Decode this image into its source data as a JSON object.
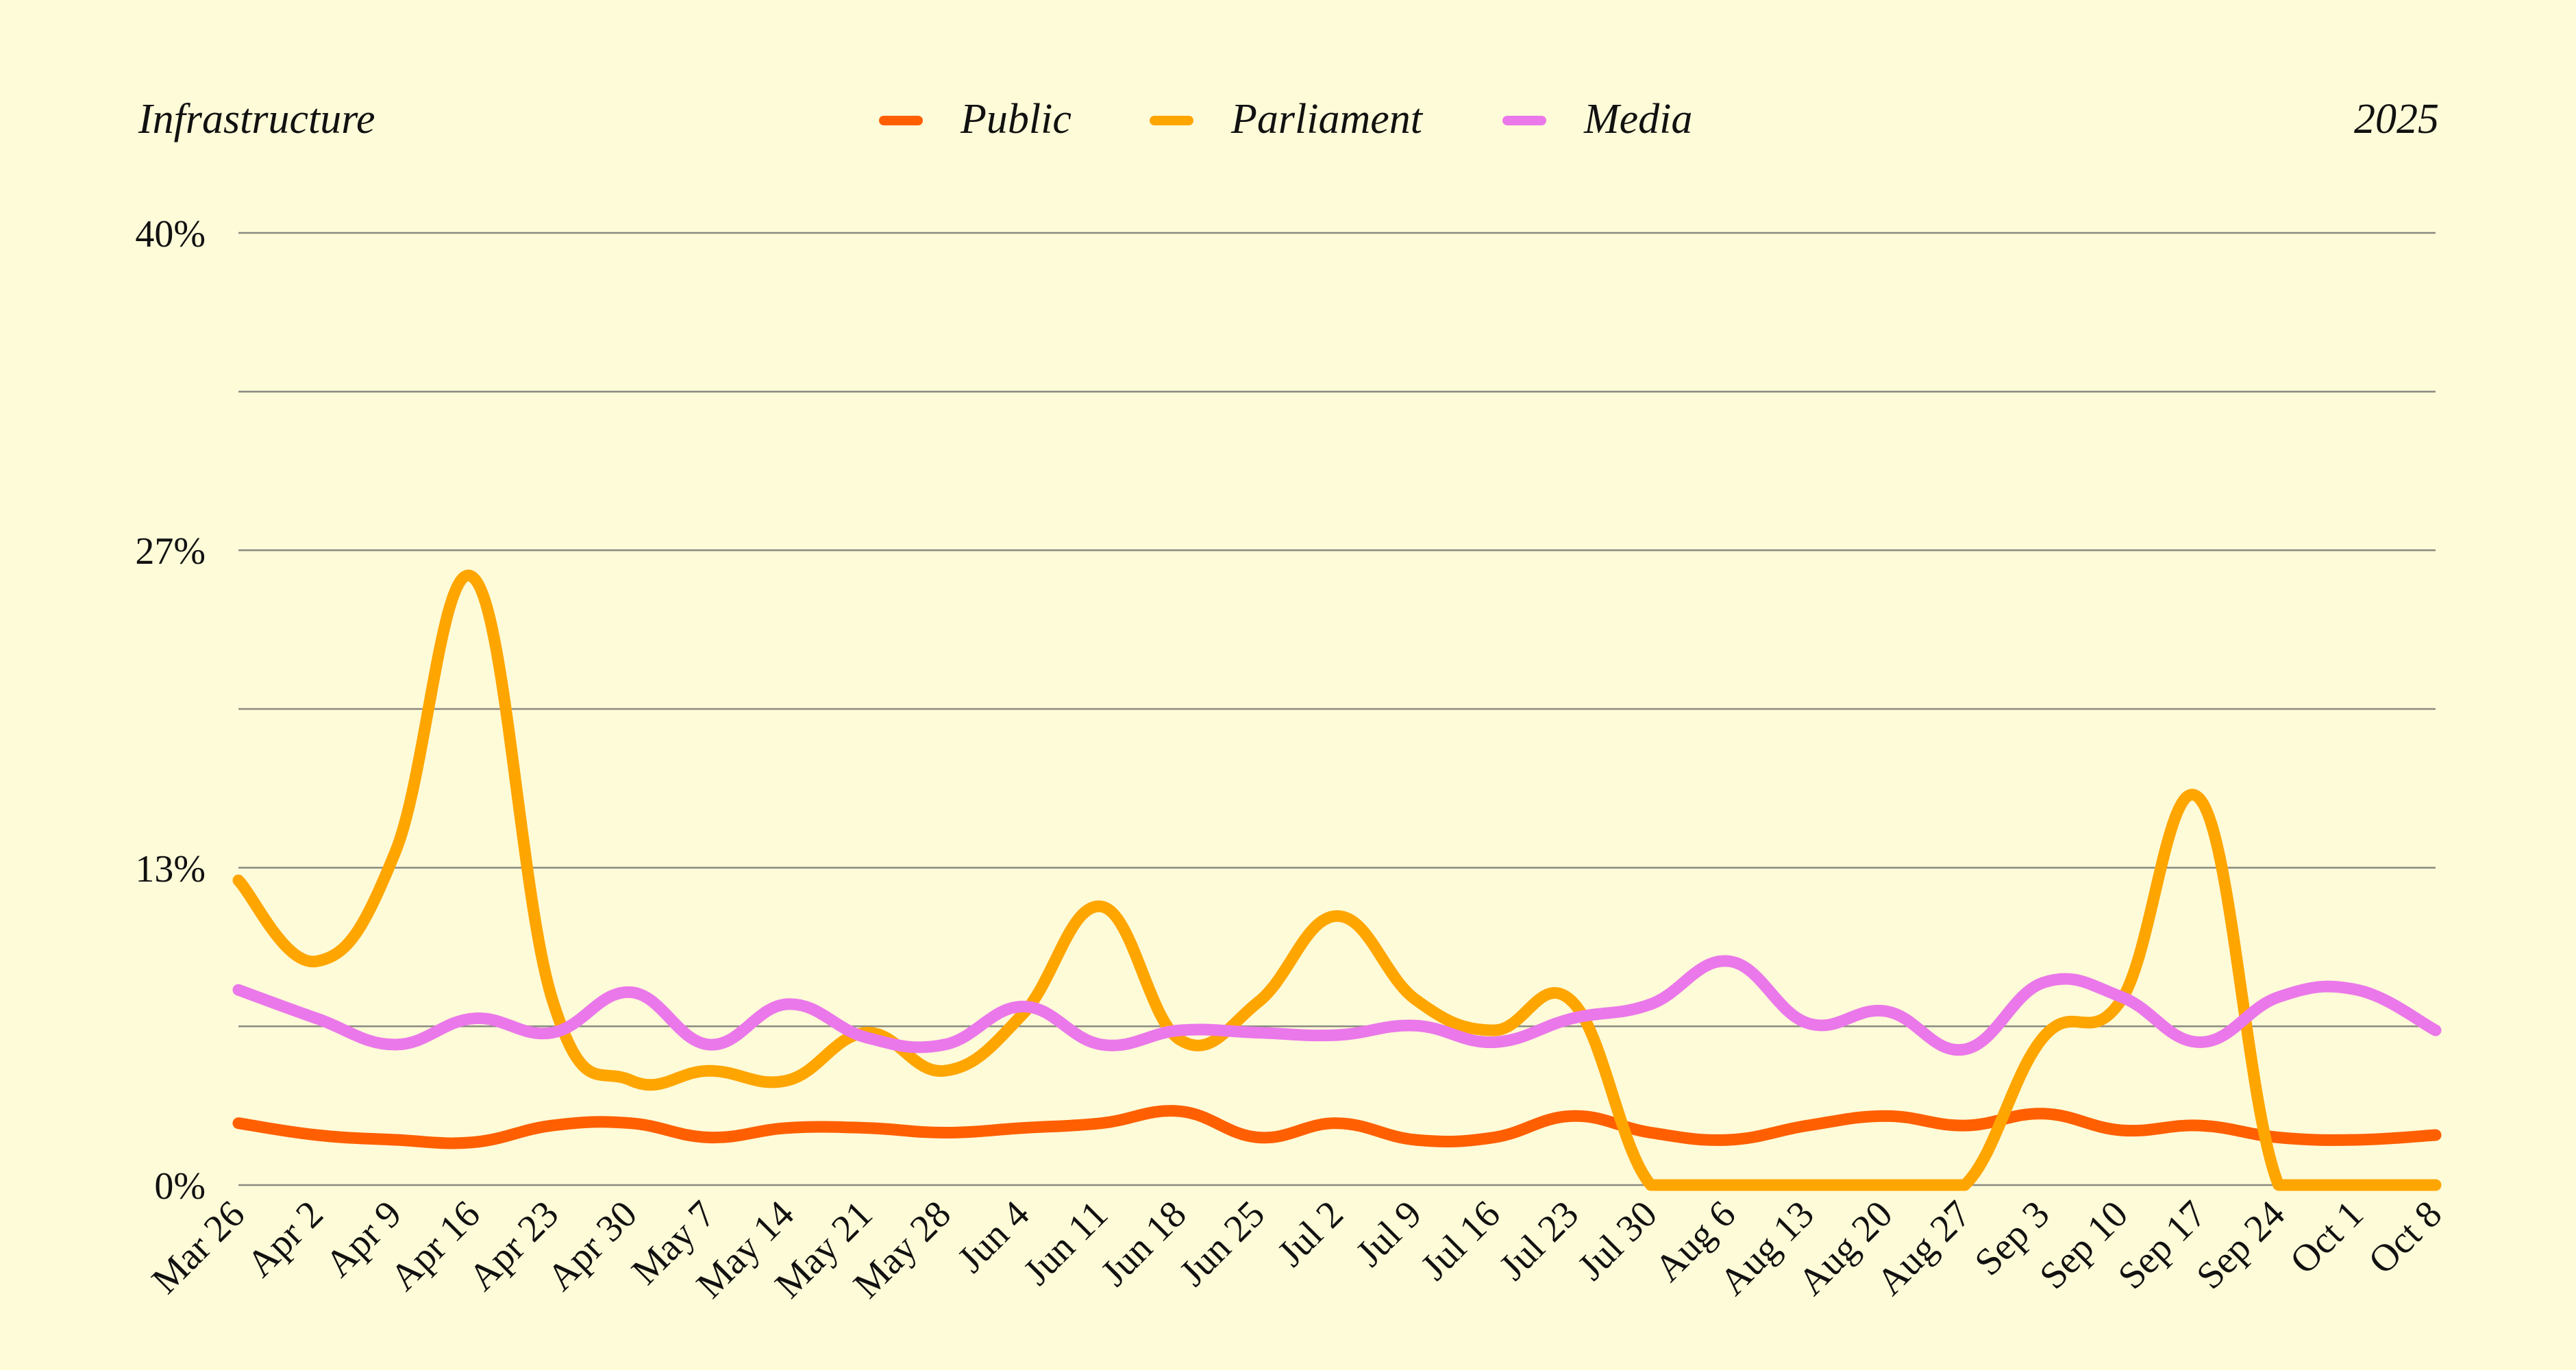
{
  "chart_data": {
    "type": "line",
    "title": "Infrastructure",
    "year_label": "2025",
    "ylim": [
      0,
      40
    ],
    "y_ticks": [
      {
        "value": 0,
        "label": "0%"
      },
      {
        "value": 13.33,
        "label": "13%"
      },
      {
        "value": 26.67,
        "label": "27%"
      },
      {
        "value": 40,
        "label": "40%"
      }
    ],
    "y_gridlines": [
      0,
      6.67,
      13.33,
      20,
      26.67,
      33.33,
      40
    ],
    "grid": true,
    "legend_position": "top-center",
    "categories": [
      "Mar 26",
      "Apr 2",
      "Apr 9",
      "Apr 16",
      "Apr 23",
      "Apr 30",
      "May 7",
      "May 14",
      "May 21",
      "May 28",
      "Jun 4",
      "Jun 11",
      "Jun 18",
      "Jun 25",
      "Jul 2",
      "Jul 9",
      "Jul 16",
      "Jul 23",
      "Jul 30",
      "Aug 6",
      "Aug 13",
      "Aug 20",
      "Aug 27",
      "Sep 3",
      "Sep 10",
      "Sep 17",
      "Sep 24",
      "Oct 1",
      "Oct 8"
    ],
    "series": [
      {
        "name": "Public",
        "color": "#ff5f00",
        "values": [
          2.6,
          2.1,
          1.9,
          1.8,
          2.5,
          2.6,
          2.0,
          2.4,
          2.4,
          2.2,
          2.4,
          2.6,
          3.1,
          2.0,
          2.6,
          1.9,
          2.0,
          2.9,
          2.2,
          1.9,
          2.5,
          2.9,
          2.5,
          3.0,
          2.3,
          2.5,
          2.0,
          1.9,
          2.1
        ]
      },
      {
        "name": "Parliament",
        "color": "#ffa500",
        "values": [
          12.8,
          9.4,
          14.0,
          25.5,
          7.8,
          4.4,
          4.8,
          4.4,
          6.4,
          4.8,
          7.2,
          11.7,
          6.1,
          7.7,
          11.3,
          7.8,
          6.5,
          7.7,
          0.0,
          0.0,
          0.0,
          0.0,
          0.0,
          6.2,
          7.8,
          16.2,
          0.0,
          0.0,
          0.0
        ]
      },
      {
        "name": "Media",
        "color": "#ea78ea",
        "values": [
          8.2,
          7.0,
          5.9,
          7.0,
          6.4,
          8.1,
          5.9,
          7.6,
          6.2,
          5.9,
          7.5,
          5.9,
          6.5,
          6.4,
          6.3,
          6.7,
          6.0,
          7.0,
          7.6,
          9.4,
          6.8,
          7.3,
          5.7,
          8.5,
          7.9,
          6.0,
          7.9,
          8.2,
          6.5
        ]
      }
    ]
  }
}
